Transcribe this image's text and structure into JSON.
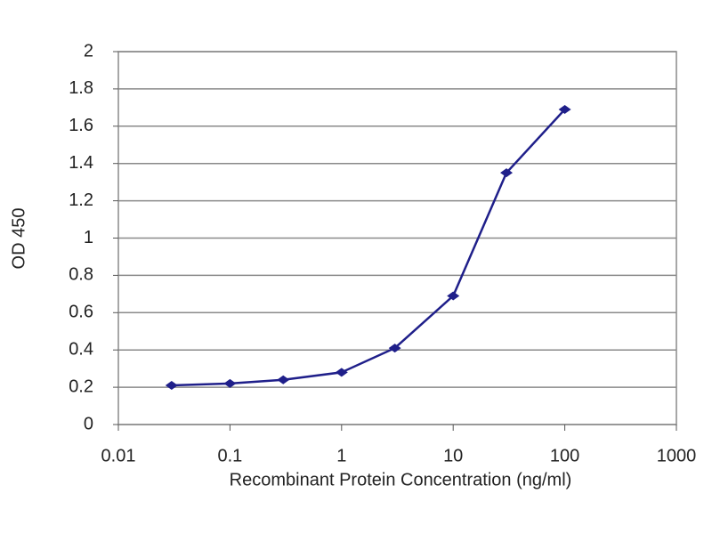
{
  "chart_data": {
    "type": "line",
    "xlabel": "Recombinant Protein Concentration (ng/ml)",
    "ylabel": "OD 450",
    "x": [
      0.03,
      0.1,
      0.3,
      1,
      3,
      10,
      30,
      100
    ],
    "values": [
      0.21,
      0.22,
      0.24,
      0.28,
      0.41,
      0.69,
      1.35,
      1.69
    ],
    "color": "#1f1f8a",
    "xscale": "log",
    "xlim": [
      0.01,
      1000
    ],
    "xticks": [
      0.01,
      0.1,
      1,
      10,
      100,
      1000
    ],
    "ylim": [
      0,
      2
    ],
    "yticks": [
      0,
      0.2,
      0.4,
      0.6,
      0.8,
      1,
      1.2,
      1.4,
      1.6,
      1.8,
      2
    ],
    "grid": true
  }
}
